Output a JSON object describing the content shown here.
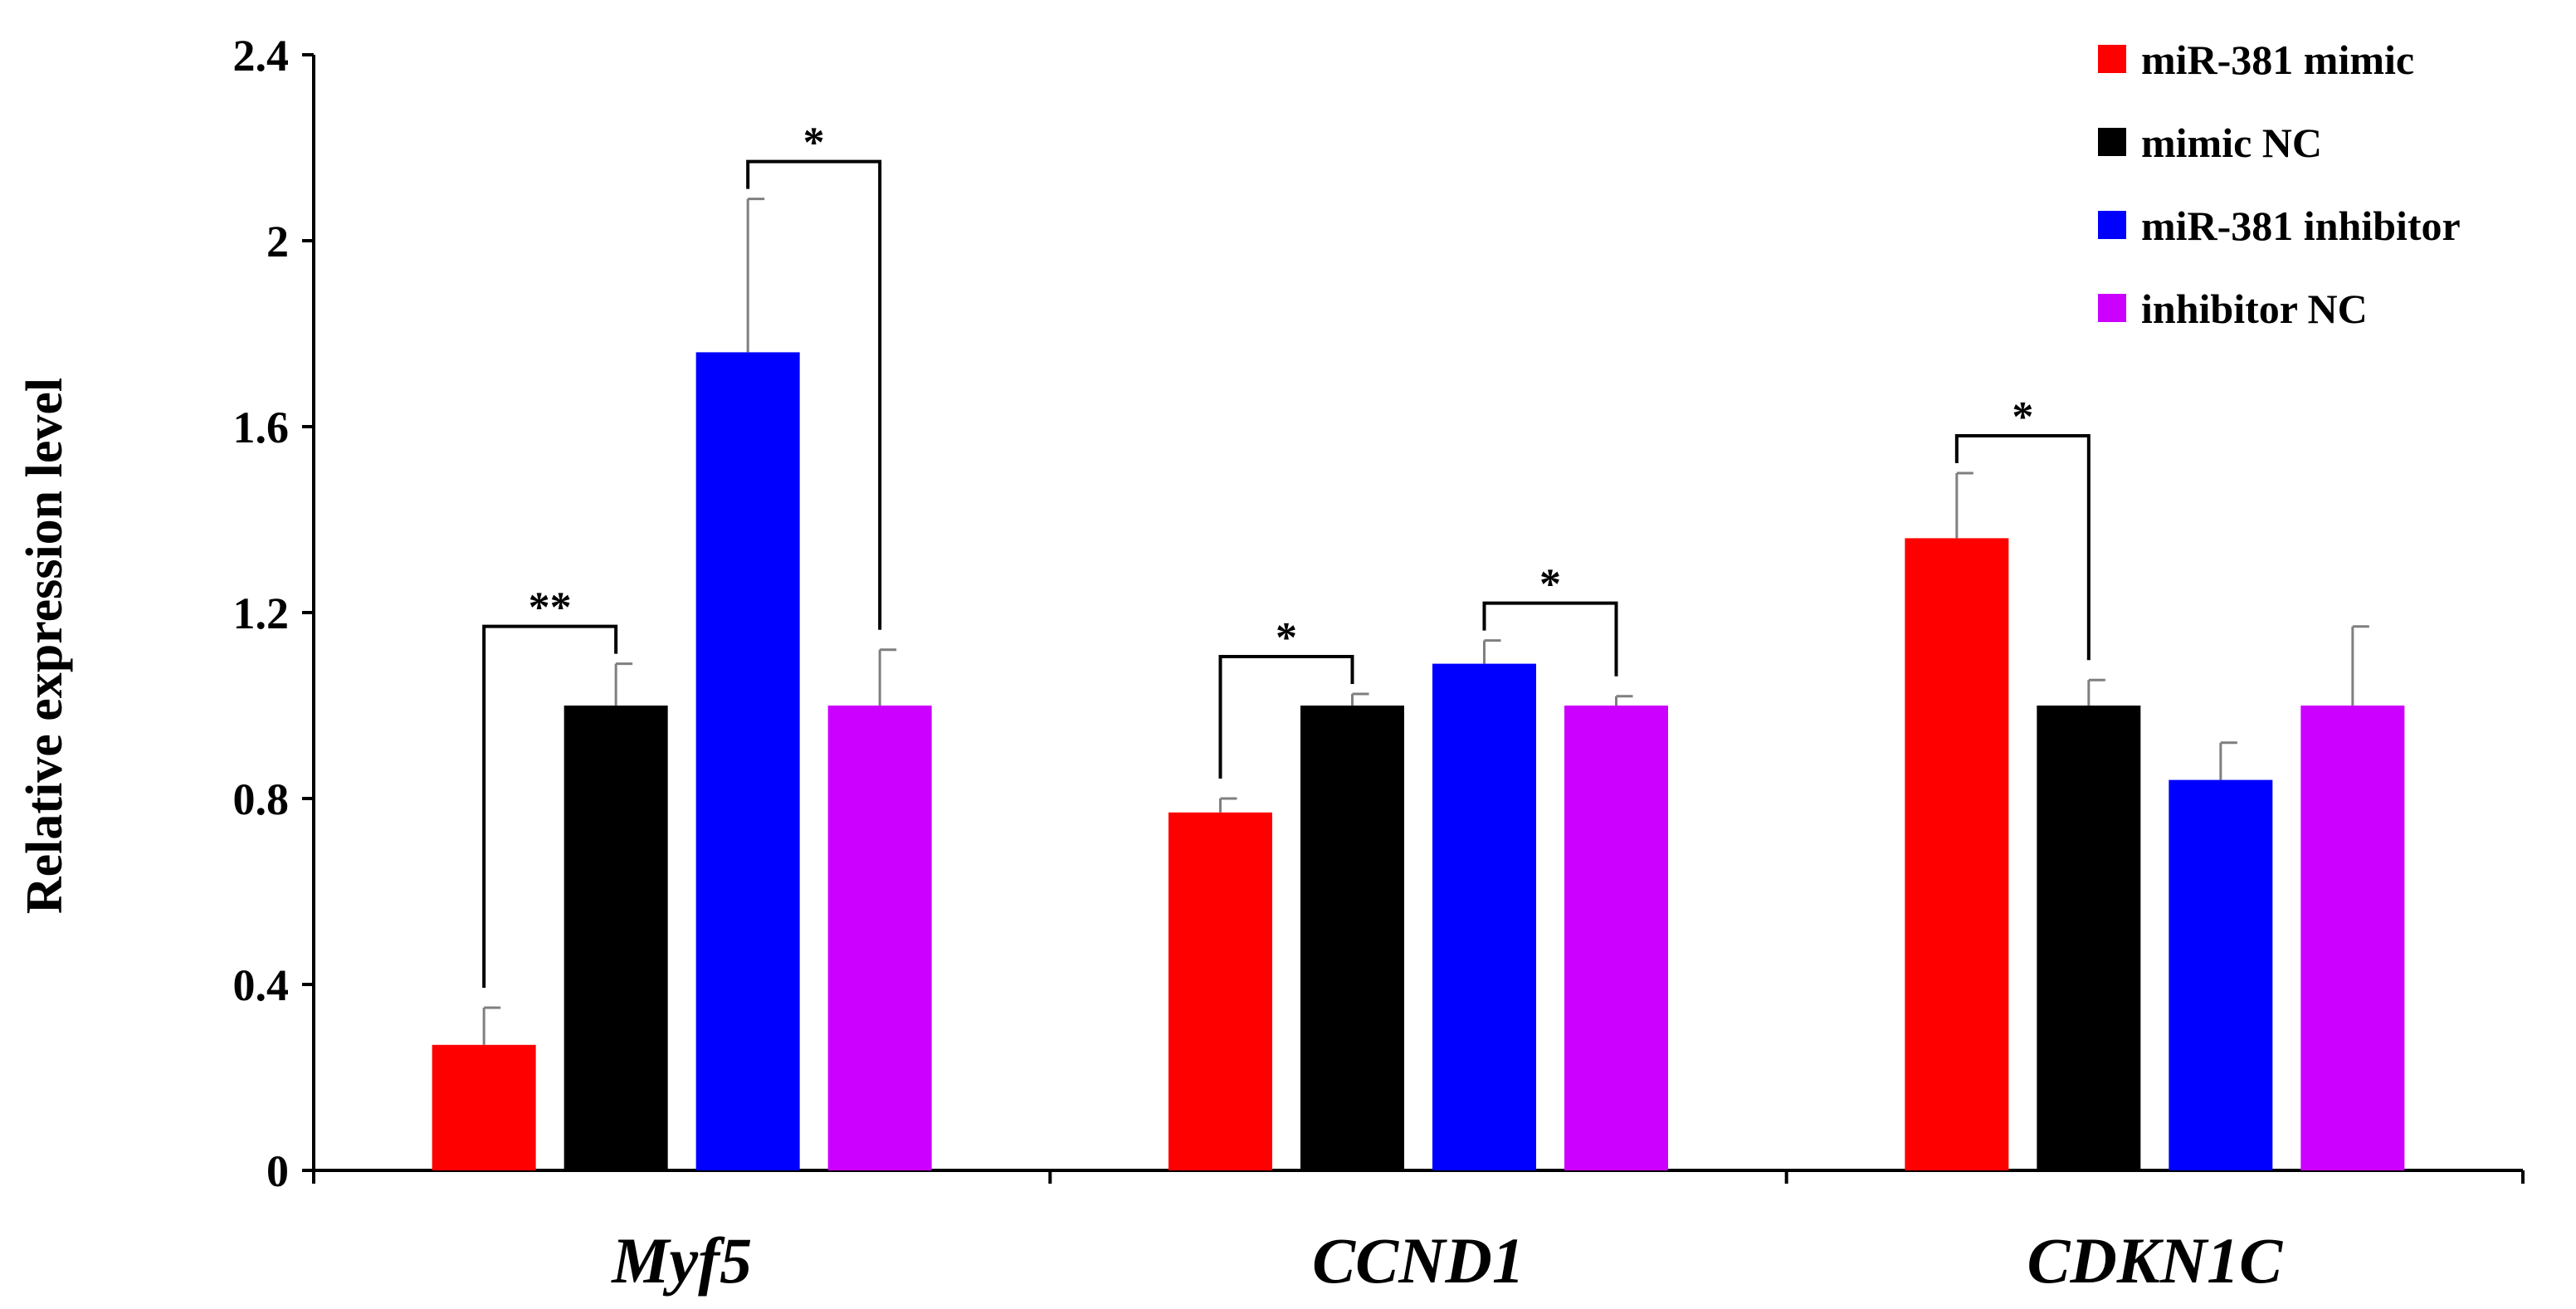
{
  "chart_data": {
    "type": "bar",
    "ylabel": "Relative expression level",
    "xlabel": "",
    "ylim": [
      0,
      2.4
    ],
    "yticks": [
      "0",
      "0.4",
      "0.8",
      "1.2",
      "1.6",
      "2",
      "2.4"
    ],
    "grid": false,
    "legend_position": "top-right",
    "categories": [
      "Myf5",
      "CCND1",
      "CDKN1C"
    ],
    "series": [
      {
        "name": "miR-381 mimic",
        "color": "#ff0000",
        "values": [
          0.27,
          0.77,
          1.36
        ],
        "errors": [
          0.08,
          0.03,
          0.14
        ]
      },
      {
        "name": "mimic NC",
        "color": "#000000",
        "values": [
          1.0,
          1.0,
          1.0
        ],
        "errors": [
          0.09,
          0.025,
          0.055
        ]
      },
      {
        "name": "miR-381 inhibitor",
        "color": "#0000ff",
        "values": [
          1.76,
          1.09,
          0.84
        ],
        "errors": [
          0.33,
          0.05,
          0.08
        ]
      },
      {
        "name": "inhibitor NC",
        "color": "#cc00ff",
        "values": [
          1.0,
          1.0,
          1.0
        ],
        "errors": [
          0.12,
          0.02,
          0.17
        ]
      }
    ],
    "annotations": [
      {
        "category": 0,
        "from_series": 0,
        "to_series": 1,
        "text": "**"
      },
      {
        "category": 0,
        "from_series": 2,
        "to_series": 3,
        "text": "*"
      },
      {
        "category": 1,
        "from_series": 0,
        "to_series": 1,
        "text": "*"
      },
      {
        "category": 1,
        "from_series": 2,
        "to_series": 3,
        "text": "*"
      },
      {
        "category": 2,
        "from_series": 0,
        "to_series": 1,
        "text": "*"
      }
    ]
  }
}
